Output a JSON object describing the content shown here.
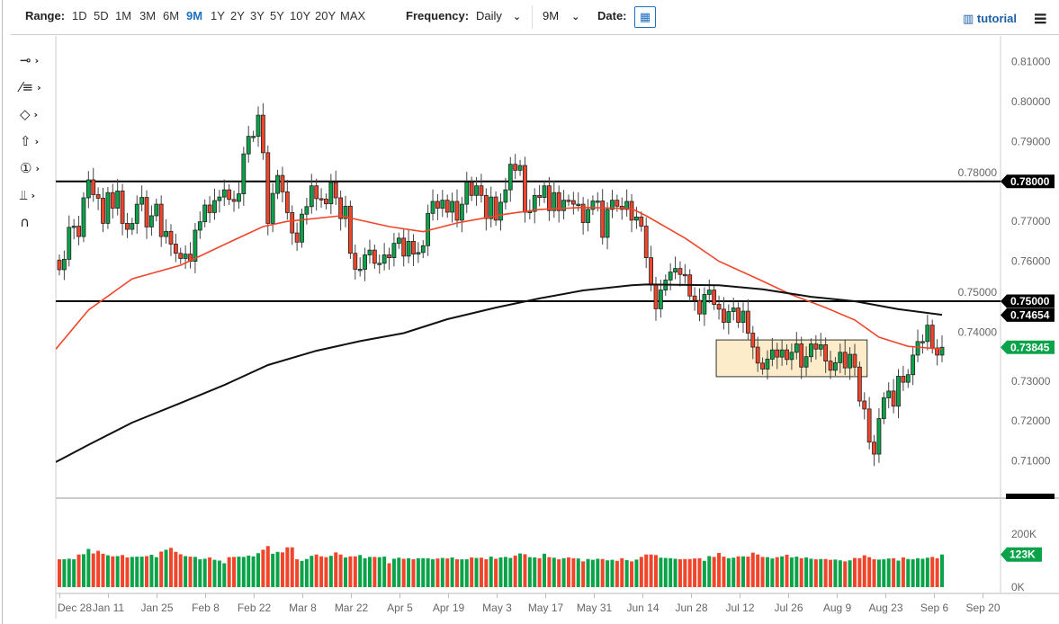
{
  "toolbar": {
    "range_label": "Range:",
    "ranges": [
      "1D",
      "5D",
      "1M",
      "3M",
      "6M",
      "9M",
      "1Y",
      "2Y",
      "3Y",
      "5Y",
      "10Y",
      "20Y",
      "MAX"
    ],
    "active_range": "9M",
    "frequency_label": "Frequency:",
    "frequency_value": "Daily",
    "period_value": "9M",
    "date_label": "Date:",
    "tutorial_label": "tutorial",
    "icons": {
      "calendar": "calendar-icon",
      "tutorial": "film-icon",
      "menu": "hamburger-icon"
    }
  },
  "drawing_tools": [
    "line-tool-icon",
    "fibonacci-tool-icon",
    "shape-tool-icon",
    "arrow-tool-icon",
    "annotation-tool-icon",
    "measure-tool-icon",
    "magnet-tool-icon"
  ],
  "drawing_tools_glyphs": [
    "⊸",
    "⁄≡",
    "◇",
    "⇧",
    "①",
    "⫫",
    "∩"
  ],
  "colors": {
    "up": "#0ba34a",
    "down": "#f0452b",
    "ma_red": "#f0452b",
    "ma_black": "#111111",
    "box_fill": "#fdecc9"
  },
  "chart_data": {
    "type": "candlestick",
    "first_open": 0.7603,
    "closes": [
      0.7579,
      0.7605,
      0.7685,
      0.7688,
      0.7662,
      0.7759,
      0.7804,
      0.7767,
      0.7758,
      0.7695,
      0.7772,
      0.7733,
      0.7776,
      0.7695,
      0.768,
      0.7695,
      0.7743,
      0.776,
      0.7686,
      0.7714,
      0.7743,
      0.7662,
      0.7675,
      0.7643,
      0.762,
      0.7607,
      0.7618,
      0.76,
      0.7678,
      0.7699,
      0.7741,
      0.7722,
      0.7752,
      0.7761,
      0.7779,
      0.7755,
      0.775,
      0.7769,
      0.7869,
      0.7913,
      0.7913,
      0.7966,
      0.7872,
      0.7695,
      0.777,
      0.7815,
      0.7774,
      0.7722,
      0.7671,
      0.7648,
      0.7718,
      0.7737,
      0.7789,
      0.7757,
      0.7756,
      0.7744,
      0.7797,
      0.7759,
      0.7707,
      0.7738,
      0.762,
      0.758,
      0.758,
      0.7616,
      0.7628,
      0.7595,
      0.7595,
      0.7616,
      0.7609,
      0.7645,
      0.7658,
      0.7613,
      0.765,
      0.7618,
      0.7622,
      0.7639,
      0.772,
      0.775,
      0.7733,
      0.7753,
      0.7723,
      0.775,
      0.7703,
      0.7743,
      0.7798,
      0.7765,
      0.7789,
      0.7765,
      0.7707,
      0.7761,
      0.7703,
      0.7748,
      0.7779,
      0.7843,
      0.7828,
      0.784,
      0.7723,
      0.7725,
      0.7765,
      0.776,
      0.7789,
      0.7727,
      0.7772,
      0.7727,
      0.7753,
      0.7752,
      0.7743,
      0.7743,
      0.7697,
      0.773,
      0.7751,
      0.7751,
      0.766,
      0.773,
      0.7753,
      0.7738,
      0.773,
      0.775,
      0.7703,
      0.7711,
      0.7688,
      0.7609,
      0.7543,
      0.7481,
      0.7528,
      0.7553,
      0.7573,
      0.7582,
      0.7567,
      0.7566,
      0.7513,
      0.7502,
      0.7468,
      0.7517,
      0.7528,
      0.7492,
      0.748,
      0.7447,
      0.7474,
      0.7483,
      0.7447,
      0.7475,
      0.742,
      0.7385,
      0.7345,
      0.733,
      0.7355,
      0.7378,
      0.736,
      0.7378,
      0.7354,
      0.7372,
      0.7393,
      0.7335,
      0.7361,
      0.7393,
      0.738,
      0.7391,
      0.735,
      0.7327,
      0.7346,
      0.7372,
      0.7333,
      0.7367,
      0.7335,
      0.725,
      0.723,
      0.7147,
      0.7117,
      0.7206,
      0.7258,
      0.7275,
      0.7237,
      0.7312,
      0.7297,
      0.7316,
      0.7365,
      0.7399,
      0.7399,
      0.744,
      0.7383,
      0.7365,
      0.73845
    ],
    "volumes_k": [
      105,
      105,
      107,
      105,
      123,
      124,
      144,
      127,
      137,
      126,
      120,
      116,
      117,
      121,
      112,
      114,
      115,
      115,
      117,
      122,
      113,
      134,
      141,
      148,
      133,
      124,
      117,
      115,
      114,
      105,
      107,
      112,
      103,
      100,
      90,
      113,
      114,
      115,
      114,
      119,
      116,
      128,
      141,
      155,
      126,
      133,
      131,
      150,
      150,
      105,
      99,
      106,
      118,
      123,
      116,
      113,
      118,
      131,
      123,
      112,
      116,
      116,
      121,
      109,
      114,
      114,
      113,
      115,
      90,
      107,
      111,
      107,
      109,
      105,
      109,
      109,
      109,
      105,
      108,
      110,
      108,
      112,
      105,
      105,
      105,
      112,
      110,
      111,
      105,
      115,
      107,
      112,
      114,
      110,
      119,
      127,
      124,
      113,
      112,
      109,
      126,
      113,
      111,
      105,
      109,
      112,
      109,
      108,
      97,
      106,
      103,
      107,
      106,
      101,
      103,
      99,
      109,
      102,
      97,
      104,
      114,
      123,
      123,
      121,
      111,
      110,
      109,
      107,
      105,
      106,
      106,
      108,
      109,
      99,
      117,
      114,
      129,
      115,
      109,
      111,
      116,
      116,
      115,
      130,
      123,
      114,
      113,
      108,
      113,
      116,
      122,
      112,
      115,
      109,
      112,
      107,
      105,
      106,
      106,
      103,
      104,
      101,
      97,
      101,
      110,
      109,
      120,
      113,
      105,
      104,
      105,
      108,
      109,
      100,
      112,
      106,
      105,
      109,
      107,
      111,
      114,
      109,
      123
    ],
    "ma_short_points": [
      [
        0,
        0.738
      ],
      [
        6,
        0.7478
      ],
      [
        15,
        0.7556
      ],
      [
        25,
        0.759
      ],
      [
        34,
        0.7642
      ],
      [
        42,
        0.7687
      ],
      [
        47,
        0.77
      ],
      [
        58,
        0.7714
      ],
      [
        68,
        0.7687
      ],
      [
        75,
        0.7674
      ],
      [
        82,
        0.7696
      ],
      [
        92,
        0.7718
      ],
      [
        99,
        0.773
      ],
      [
        108,
        0.7735
      ],
      [
        118,
        0.7732
      ],
      [
        121,
        0.7714
      ],
      [
        129,
        0.7658
      ],
      [
        136,
        0.76
      ],
      [
        144,
        0.7556
      ],
      [
        151,
        0.7516
      ],
      [
        158,
        0.7484
      ],
      [
        164,
        0.7453
      ],
      [
        169,
        0.741
      ],
      [
        175,
        0.7387
      ],
      [
        182,
        0.738
      ]
    ],
    "ma_long_points": [
      [
        0,
        0.7097
      ],
      [
        6,
        0.714
      ],
      [
        15,
        0.7196
      ],
      [
        25,
        0.7245
      ],
      [
        34,
        0.729
      ],
      [
        43,
        0.734
      ],
      [
        53,
        0.7376
      ],
      [
        62,
        0.74
      ],
      [
        71,
        0.742
      ],
      [
        80,
        0.7455
      ],
      [
        90,
        0.7484
      ],
      [
        99,
        0.7507
      ],
      [
        108,
        0.7527
      ],
      [
        118,
        0.754
      ],
      [
        121,
        0.7542
      ],
      [
        136,
        0.754
      ],
      [
        145,
        0.753
      ],
      [
        155,
        0.7511
      ],
      [
        164,
        0.75
      ],
      [
        173,
        0.748
      ],
      [
        182,
        0.7466
      ]
    ],
    "horizontal_lines": [
      0.78,
      0.75
    ],
    "range_box": {
      "from_index": 136,
      "to_index": 166,
      "low": 0.7311,
      "high": 0.7403
    },
    "ylim": [
      0.7045,
      0.8155
    ],
    "y_ticks": [
      "0.81000",
      "0.80000",
      "0.79000",
      "0.78000",
      "0.77000",
      "0.76000",
      "0.75000",
      "0.74000",
      "0.73000",
      "0.72000",
      "0.71000"
    ],
    "price_tags": [
      {
        "label": "0.78000",
        "value": 0.78,
        "color": "#000000"
      },
      {
        "label": "0.75000",
        "value": 0.75,
        "color": "#000000"
      },
      {
        "label": "0.74654",
        "value": 0.74654,
        "color": "#000000"
      },
      {
        "label": "0.73845",
        "value": 0.73845,
        "color": "#0ba34a"
      }
    ],
    "volume_ticks": [
      "200K",
      "0K"
    ],
    "volume_tag": "123K",
    "x_ticks": [
      "Dec 28",
      "Jan 11",
      "Jan 25",
      "Feb 8",
      "Feb 22",
      "Mar 8",
      "Mar 22",
      "Apr 5",
      "Apr 19",
      "May 3",
      "May 17",
      "May 31",
      "Jun 14",
      "Jun 28",
      "Jul 12",
      "Jul 26",
      "Aug 9",
      "Aug 23",
      "Sep 6",
      "Sep 20"
    ],
    "grid": false
  }
}
